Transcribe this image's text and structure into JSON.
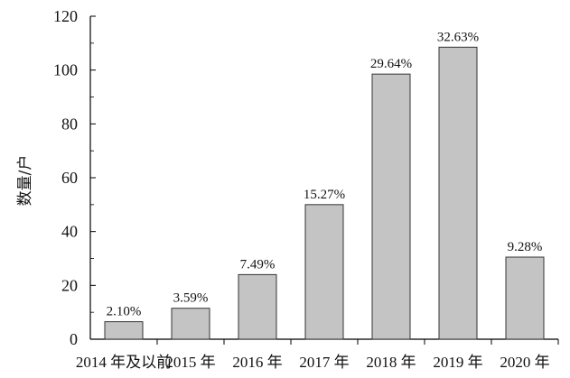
{
  "chart_data": {
    "type": "bar",
    "title": "",
    "xlabel": "",
    "ylabel": "数量/户",
    "ylim": [
      0,
      120
    ],
    "yticks": [
      0,
      20,
      40,
      60,
      80,
      100,
      120
    ],
    "categories": [
      "2014 年及以前",
      "2015 年",
      "2016 年",
      "2017 年",
      "2018 年",
      "2019 年",
      "2020 年"
    ],
    "values": [
      6.5,
      11.5,
      24,
      50,
      98.5,
      108.5,
      30.5
    ],
    "data_labels": [
      "2.10%",
      "3.59%",
      "7.49%",
      "15.27%",
      "29.64%",
      "32.63%",
      "9.28%"
    ],
    "grid": false,
    "colors": {
      "bar_fill": "#c4c4c4",
      "bar_stroke": "#333333"
    }
  }
}
